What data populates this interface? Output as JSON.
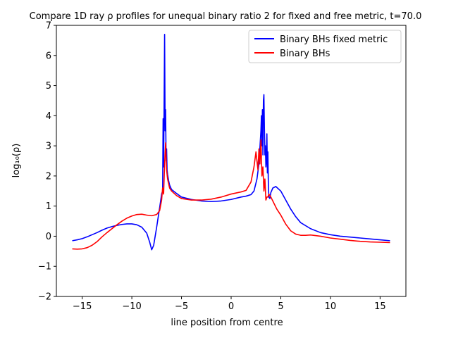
{
  "chart_data": {
    "type": "line",
    "title": "Compare 1D ray ρ profiles for unequal binary ratio 2 for fixed and free metric, t=70.0",
    "xlabel": "line position from centre",
    "ylabel": "log₁₀(ρ)",
    "xlim": [
      -17.6,
      17.6
    ],
    "ylim": [
      -2,
      7
    ],
    "xticks": [
      -15,
      -10,
      -5,
      0,
      5,
      10,
      15
    ],
    "yticks": [
      -2,
      -1,
      0,
      1,
      2,
      3,
      4,
      5,
      6,
      7
    ],
    "legend_position": "upper-right",
    "grid": false,
    "series": [
      {
        "name": "Binary BHs fixed metric",
        "color": "#0000ff",
        "x": [
          -16.0,
          -15.5,
          -15.0,
          -14.5,
          -14.0,
          -13.5,
          -13.0,
          -12.5,
          -12.0,
          -11.5,
          -11.0,
          -10.5,
          -10.0,
          -9.5,
          -9.0,
          -8.5,
          -8.2,
          -8.0,
          -7.8,
          -7.5,
          -7.2,
          -7.0,
          -6.9,
          -6.85,
          -6.8,
          -6.75,
          -6.7,
          -6.65,
          -6.6,
          -6.55,
          -6.5,
          -6.45,
          -6.4,
          -6.3,
          -6.2,
          -6.0,
          -5.5,
          -5.0,
          -4.0,
          -3.0,
          -2.0,
          -1.0,
          0.0,
          1.0,
          1.5,
          2.0,
          2.3,
          2.6,
          2.8,
          3.0,
          3.05,
          3.1,
          3.15,
          3.2,
          3.25,
          3.3,
          3.35,
          3.4,
          3.45,
          3.5,
          3.55,
          3.6,
          3.65,
          3.7,
          3.75,
          3.8,
          3.9,
          4.0,
          4.2,
          4.5,
          5.0,
          5.5,
          6.0,
          6.5,
          7.0,
          8.0,
          9.0,
          10.0,
          11.0,
          12.0,
          13.0,
          14.0,
          15.0,
          16.0
        ],
        "y": [
          -0.15,
          -0.12,
          -0.08,
          -0.02,
          0.05,
          0.12,
          0.2,
          0.27,
          0.32,
          0.36,
          0.39,
          0.41,
          0.41,
          0.38,
          0.3,
          0.1,
          -0.2,
          -0.45,
          -0.3,
          0.3,
          0.95,
          1.4,
          1.5,
          3.9,
          2.3,
          4.4,
          6.7,
          3.5,
          4.2,
          2.5,
          2.9,
          2.2,
          2.05,
          1.85,
          1.7,
          1.55,
          1.42,
          1.3,
          1.22,
          1.17,
          1.15,
          1.17,
          1.22,
          1.3,
          1.33,
          1.38,
          1.5,
          1.9,
          2.4,
          3.5,
          4.0,
          3.0,
          4.2,
          2.7,
          4.5,
          4.7,
          3.6,
          2.7,
          3.0,
          2.3,
          2.5,
          3.4,
          2.1,
          2.8,
          1.7,
          1.3,
          1.25,
          1.45,
          1.6,
          1.65,
          1.5,
          1.2,
          0.9,
          0.65,
          0.45,
          0.25,
          0.12,
          0.05,
          0.0,
          -0.03,
          -0.06,
          -0.09,
          -0.12,
          -0.15
        ]
      },
      {
        "name": "Binary BHs",
        "color": "#ff0000",
        "x": [
          -16.0,
          -15.5,
          -15.0,
          -14.5,
          -14.0,
          -13.5,
          -13.0,
          -12.5,
          -12.0,
          -11.5,
          -11.0,
          -10.5,
          -10.0,
          -9.5,
          -9.0,
          -8.5,
          -8.0,
          -7.5,
          -7.2,
          -7.0,
          -6.9,
          -6.8,
          -6.7,
          -6.6,
          -6.5,
          -6.4,
          -6.3,
          -6.2,
          -6.0,
          -5.5,
          -5.0,
          -4.0,
          -3.0,
          -2.0,
          -1.0,
          0.0,
          1.0,
          1.5,
          2.0,
          2.3,
          2.5,
          2.7,
          2.8,
          2.9,
          3.0,
          3.1,
          3.2,
          3.3,
          3.4,
          3.5,
          3.6,
          3.7,
          3.8,
          4.0,
          4.3,
          4.6,
          5.0,
          5.5,
          6.0,
          6.5,
          7.0,
          7.5,
          8.0,
          9.0,
          10.0,
          11.0,
          12.0,
          13.0,
          14.0,
          15.0,
          16.0
        ],
        "y": [
          -0.42,
          -0.43,
          -0.42,
          -0.38,
          -0.3,
          -0.18,
          -0.02,
          0.12,
          0.25,
          0.38,
          0.5,
          0.6,
          0.67,
          0.72,
          0.73,
          0.7,
          0.68,
          0.72,
          0.85,
          1.2,
          1.6,
          1.4,
          2.4,
          3.1,
          2.2,
          1.9,
          1.75,
          1.6,
          1.5,
          1.35,
          1.25,
          1.2,
          1.2,
          1.23,
          1.3,
          1.4,
          1.47,
          1.52,
          1.8,
          2.3,
          2.8,
          2.2,
          2.9,
          2.4,
          3.2,
          2.0,
          2.3,
          1.5,
          1.9,
          1.2,
          1.3,
          1.3,
          1.4,
          1.3,
          1.1,
          0.9,
          0.7,
          0.4,
          0.18,
          0.07,
          0.03,
          0.03,
          0.04,
          0.0,
          -0.06,
          -0.1,
          -0.14,
          -0.17,
          -0.19,
          -0.2,
          -0.21
        ]
      }
    ]
  }
}
